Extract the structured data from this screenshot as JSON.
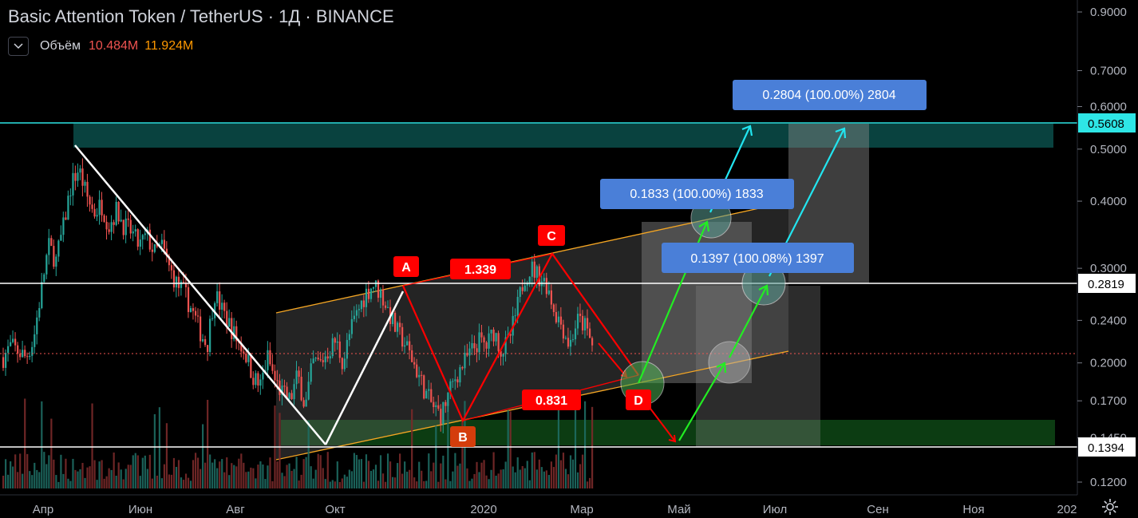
{
  "header": {
    "symbol_line": "Basic Attention Token / TetherUS · 1Д · BINANCE",
    "volume_label": "Объём",
    "volume_value_1": "10.484M",
    "volume_value_2": "11.924M"
  },
  "colors": {
    "background": "#000000",
    "candle_up": "#26a69a",
    "candle_down": "#ef5350",
    "pattern_red": "#ff0000",
    "arrow_green": "#22ee22",
    "arrow_cyan": "#22e5f0",
    "channel_orange": "#f5a623",
    "label_blue": "#4a7fd8",
    "resistance_cyan": "#2ee6e6"
  },
  "chart_data": {
    "type": "candlestick",
    "symbol": "BAT/USDT",
    "interval": "1Д",
    "exchange": "BINANCE",
    "y_scale": "log",
    "ylim": [
      0.115,
      0.98
    ],
    "x_tick_labels": [
      "Апр",
      "Июн",
      "Авг",
      "Окт",
      "2020",
      "Мар",
      "Май",
      "Июл",
      "Сен",
      "Ноя",
      "202"
    ],
    "y_tick_labels": [
      "0.9000",
      "0.7000",
      "0.6000",
      "0.5000",
      "0.4000",
      "0.3000",
      "0.2400",
      "0.2000",
      "0.1700",
      "0.1450",
      "0.1200"
    ],
    "price_trace": [
      0.205,
      0.215,
      0.21,
      0.205,
      0.22,
      0.27,
      0.33,
      0.31,
      0.36,
      0.43,
      0.46,
      0.41,
      0.38,
      0.395,
      0.36,
      0.385,
      0.36,
      0.35,
      0.33,
      0.345,
      0.32,
      0.33,
      0.3,
      0.28,
      0.27,
      0.25,
      0.23,
      0.215,
      0.27,
      0.25,
      0.235,
      0.22,
      0.21,
      0.19,
      0.18,
      0.205,
      0.185,
      0.175,
      0.17,
      0.19,
      0.165,
      0.2,
      0.2,
      0.21,
      0.22,
      0.2,
      0.23,
      0.25,
      0.27,
      0.28,
      0.27,
      0.25,
      0.23,
      0.22,
      0.205,
      0.19,
      0.175,
      0.165,
      0.16,
      0.175,
      0.19,
      0.2,
      0.21,
      0.22,
      0.215,
      0.23,
      0.21,
      0.22,
      0.25,
      0.29,
      0.3,
      0.29,
      0.28,
      0.25,
      0.235,
      0.215,
      0.24,
      0.235,
      0.215
    ],
    "horizontal_levels": [
      {
        "value": 0.5608,
        "label": "0.5608",
        "style": "cyan"
      },
      {
        "value": 0.2819,
        "label": "0.2819",
        "style": "white"
      },
      {
        "value": 0.1394,
        "label": "0.1394",
        "style": "white"
      }
    ],
    "current_price_dotted": 0.212,
    "pattern_points": [
      {
        "label": "A",
        "price": 0.283
      },
      {
        "label": "B",
        "price": 0.155
      },
      {
        "label": "C",
        "price": 0.308
      },
      {
        "label": "D",
        "price": 0.17
      }
    ],
    "pattern_ratios": [
      "1.339",
      "0.831"
    ],
    "measurement_labels": [
      "0.2804 (100.00%) 2804",
      "0.1833 (100.00%) 1833",
      "0.1397 (100.08%) 1397"
    ]
  }
}
